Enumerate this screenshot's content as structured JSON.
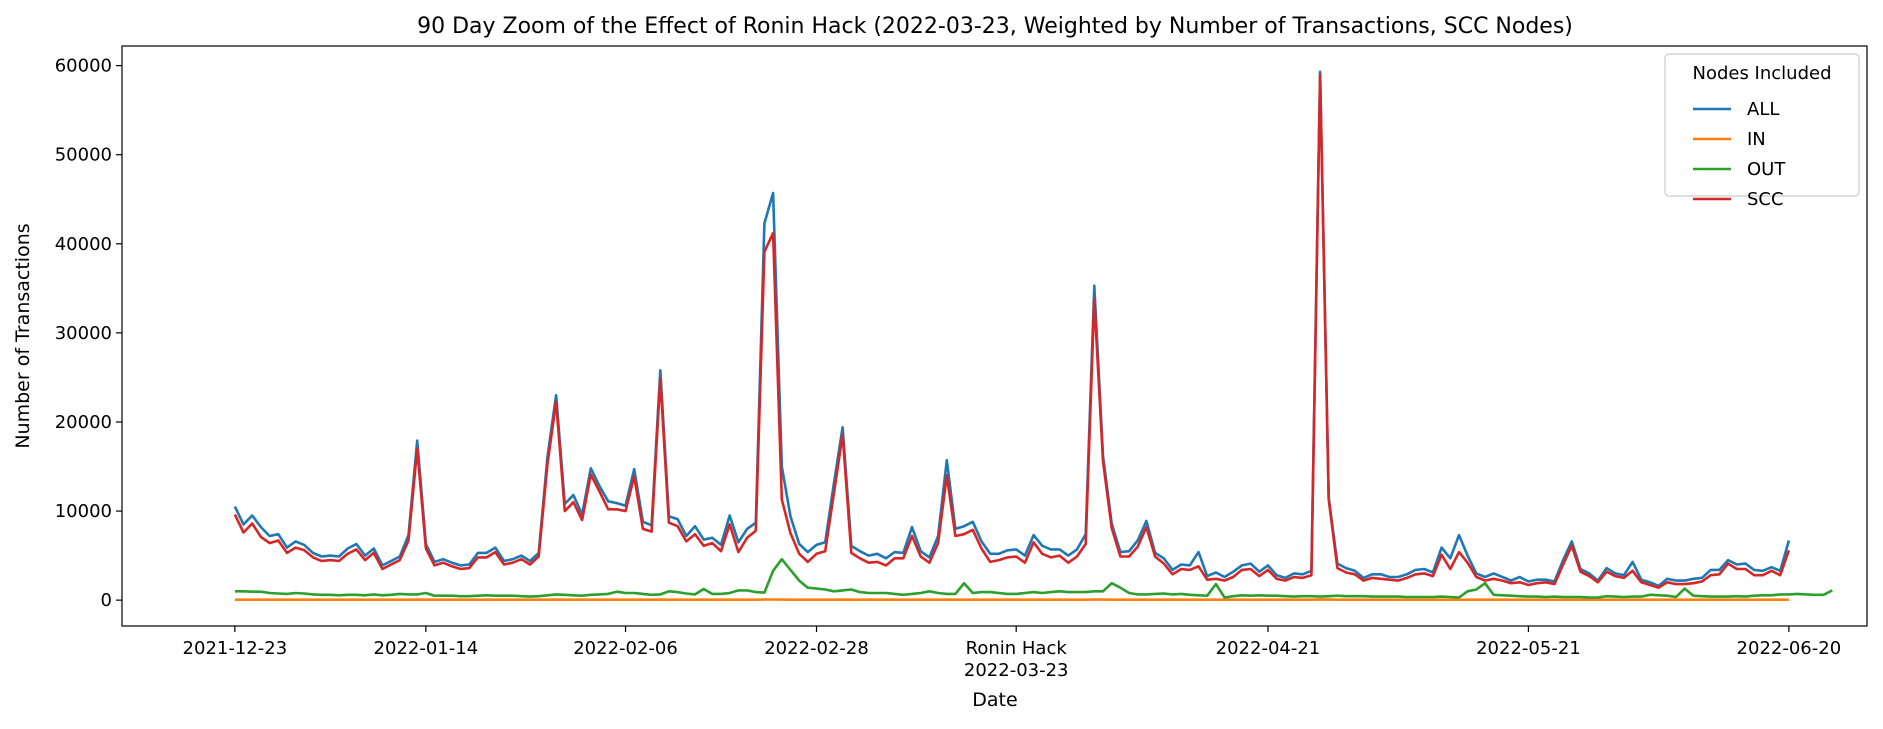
{
  "chart_data": {
    "type": "line",
    "title": "90 Day Zoom of the Effect of Ronin Hack (2022-03-23, Weighted by Number of Transactions, SCC Nodes)",
    "xlabel": "Date",
    "ylabel": "Number of Transactions",
    "x_start": "2021-12-23",
    "xlim": [
      "2021-12-10",
      "2022-06-29"
    ],
    "ylim": [
      -2900,
      62200
    ],
    "yticks": [
      0,
      10000,
      20000,
      30000,
      40000,
      50000,
      60000
    ],
    "xticks": [
      {
        "date": "2021-12-23",
        "label": "2021-12-23"
      },
      {
        "date": "2022-01-14",
        "label": "2022-01-14"
      },
      {
        "date": "2022-02-06",
        "label": "2022-02-06"
      },
      {
        "date": "2022-02-28",
        "label": "2022-02-28"
      },
      {
        "date": "2022-03-23",
        "label": "Ronin Hack\n2022-03-23"
      },
      {
        "date": "2022-04-21",
        "label": "2022-04-21"
      },
      {
        "date": "2022-05-21",
        "label": "2022-05-21"
      },
      {
        "date": "2022-06-20",
        "label": "2022-06-20"
      }
    ],
    "legend": {
      "title": "Nodes Included",
      "position": "top-right"
    },
    "series": [
      {
        "name": "ALL",
        "color": "#1f77b4",
        "values": [
          10500,
          8500,
          9500,
          8200,
          7200,
          7400,
          5900,
          6600,
          6200,
          5300,
          4900,
          5000,
          4900,
          5800,
          6300,
          5000,
          5800,
          3900,
          4400,
          4900,
          7300,
          17900,
          6300,
          4300,
          4600,
          4200,
          3900,
          4000,
          5300,
          5300,
          5900,
          4400,
          4600,
          5000,
          4400,
          5300,
          16000,
          23000,
          10800,
          11800,
          9600,
          14800,
          12800,
          11100,
          10900,
          10600,
          14700,
          8800,
          8400,
          25800,
          9400,
          9100,
          7200,
          8300,
          6800,
          7000,
          6200,
          9500,
          6500,
          8000,
          8700,
          42300,
          45700,
          15000,
          9400,
          6300,
          5400,
          6200,
          6500,
          13100,
          19400,
          6100,
          5500,
          5000,
          5200,
          4700,
          5400,
          5300,
          8200,
          5500,
          4800,
          7200,
          15700,
          8000,
          8300,
          8800,
          6600,
          5200,
          5200,
          5600,
          5700,
          5000,
          7300,
          6100,
          5700,
          5700,
          5000,
          5700,
          7400,
          35300,
          16200,
          8600,
          5400,
          5500,
          6700,
          8900,
          5300,
          4700,
          3400,
          4000,
          3900,
          5400,
          2700,
          3100,
          2600,
          3200,
          3900,
          4100,
          3200,
          3900,
          2800,
          2500,
          3000,
          2900,
          3300,
          59300,
          11500,
          4100,
          3600,
          3300,
          2500,
          2900,
          2900,
          2600,
          2600,
          2900,
          3400,
          3500,
          3100,
          5900,
          4700,
          7300,
          5000,
          3000,
          2600,
          3000,
          2600,
          2200,
          2600,
          2100,
          2300,
          2300,
          2100,
          4500,
          6600,
          3500,
          3000,
          2200,
          3600,
          3000,
          2800,
          4300,
          2300,
          2000,
          1600,
          2400,
          2200,
          2200,
          2400,
          2500,
          3400,
          3400,
          4500,
          4000,
          4100,
          3400,
          3300,
          3700,
          3300,
          6700
        ]
      },
      {
        "name": "IN",
        "color": "#ff7f0e",
        "values": [
          50,
          50,
          50,
          50,
          50,
          50,
          50,
          50,
          50,
          50,
          50,
          50,
          50,
          50,
          50,
          50,
          50,
          50,
          50,
          50,
          50,
          60,
          50,
          50,
          50,
          50,
          50,
          50,
          50,
          50,
          50,
          50,
          50,
          50,
          50,
          50,
          50,
          60,
          50,
          50,
          50,
          50,
          50,
          50,
          50,
          50,
          50,
          50,
          50,
          60,
          50,
          50,
          50,
          50,
          50,
          50,
          50,
          50,
          50,
          50,
          50,
          80,
          80,
          60,
          50,
          50,
          50,
          50,
          50,
          50,
          60,
          50,
          50,
          50,
          50,
          50,
          50,
          50,
          50,
          50,
          50,
          50,
          60,
          50,
          50,
          50,
          50,
          50,
          50,
          50,
          50,
          50,
          50,
          50,
          50,
          50,
          50,
          50,
          50,
          80,
          60,
          50,
          50,
          50,
          50,
          50,
          50,
          50,
          50,
          50,
          50,
          50,
          50,
          50,
          50,
          50,
          50,
          50,
          50,
          50,
          50,
          50,
          50,
          50,
          50,
          90,
          60,
          50,
          50,
          50,
          50,
          50,
          50,
          50,
          50,
          50,
          50,
          50,
          50,
          50,
          50,
          50,
          50,
          50,
          50,
          50,
          50,
          50,
          50,
          50,
          50,
          50,
          50,
          50,
          50,
          50,
          50,
          50,
          50,
          50,
          50,
          50,
          50,
          50,
          50,
          50,
          50,
          50,
          50,
          50,
          50,
          50,
          50,
          50,
          50,
          50,
          50,
          50,
          50,
          50
        ]
      },
      {
        "name": "OUT",
        "color": "#2ca02c",
        "values": [
          1000,
          1000,
          950,
          950,
          800,
          750,
          700,
          800,
          750,
          650,
          600,
          600,
          550,
          600,
          600,
          550,
          650,
          550,
          600,
          700,
          650,
          650,
          800,
          500,
          500,
          500,
          450,
          450,
          500,
          550,
          500,
          500,
          500,
          450,
          400,
          450,
          550,
          650,
          600,
          550,
          500,
          600,
          650,
          700,
          950,
          800,
          800,
          700,
          600,
          650,
          1000,
          900,
          750,
          650,
          1250,
          700,
          700,
          800,
          1100,
          1100,
          900,
          850,
          3300,
          4600,
          3400,
          2200,
          1400,
          1300,
          1200,
          1000,
          1100,
          1200,
          900,
          800,
          800,
          800,
          700,
          600,
          700,
          800,
          1000,
          800,
          700,
          700,
          1900,
          800,
          900,
          900,
          800,
          700,
          700,
          800,
          900,
          800,
          900,
          1000,
          900,
          900,
          900,
          1000,
          1000,
          1900,
          1400,
          800,
          650,
          650,
          700,
          750,
          650,
          700,
          600,
          550,
          500,
          1800,
          300,
          450,
          550,
          500,
          550,
          500,
          500,
          450,
          400,
          450,
          450,
          400,
          450,
          500,
          450,
          450,
          450,
          400,
          400,
          400,
          400,
          350,
          350,
          350,
          350,
          400,
          350,
          300,
          1000,
          1200,
          1900,
          600,
          550,
          500,
          450,
          400,
          400,
          350,
          400,
          350,
          350,
          350,
          300,
          300,
          450,
          400,
          350,
          400,
          400,
          600,
          550,
          500,
          350,
          1300,
          500,
          450,
          400,
          400,
          400,
          450,
          400,
          500,
          550,
          550,
          650,
          650,
          700,
          650,
          600,
          600,
          1100
        ]
      },
      {
        "name": "SCC",
        "color": "#d62728",
        "values": [
          9600,
          7600,
          8600,
          7100,
          6400,
          6700,
          5300,
          5900,
          5600,
          4800,
          4400,
          4500,
          4400,
          5200,
          5700,
          4500,
          5300,
          3500,
          4000,
          4500,
          6700,
          17000,
          5800,
          3900,
          4200,
          3800,
          3500,
          3600,
          4800,
          4800,
          5400,
          4000,
          4200,
          4600,
          4000,
          4900,
          15200,
          22300,
          10000,
          11000,
          9000,
          14100,
          12200,
          10200,
          10200,
          10000,
          13900,
          8000,
          7700,
          24900,
          8700,
          8300,
          6600,
          7400,
          6100,
          6400,
          5500,
          8500,
          5400,
          7000,
          7800,
          39100,
          41200,
          11300,
          7500,
          5200,
          4300,
          5200,
          5500,
          12000,
          18600,
          5300,
          4700,
          4200,
          4300,
          3900,
          4700,
          4700,
          7200,
          4900,
          4200,
          6400,
          14000,
          7200,
          7400,
          7900,
          5800,
          4300,
          4500,
          4800,
          4900,
          4200,
          6500,
          5200,
          4800,
          5000,
          4200,
          4900,
          6300,
          33800,
          15600,
          8100,
          4900,
          4900,
          6000,
          8200,
          4900,
          4100,
          2900,
          3500,
          3400,
          3800,
          2300,
          2400,
          2200,
          2600,
          3400,
          3500,
          2700,
          3400,
          2400,
          2200,
          2600,
          2500,
          2800,
          59000,
          11300,
          3600,
          3100,
          2900,
          2200,
          2500,
          2400,
          2300,
          2200,
          2500,
          2900,
          3000,
          2700,
          5100,
          3500,
          5400,
          4200,
          2600,
          2200,
          2400,
          2200,
          1900,
          2000,
          1700,
          1900,
          2000,
          1800,
          4000,
          6100,
          3200,
          2700,
          2000,
          3200,
          2700,
          2500,
          3300,
          2000,
          1700,
          1400,
          2000,
          1800,
          1800,
          1900,
          2100,
          2800,
          2900,
          4100,
          3500,
          3500,
          2800,
          2800,
          3300,
          2800,
          5600
        ]
      }
    ]
  }
}
